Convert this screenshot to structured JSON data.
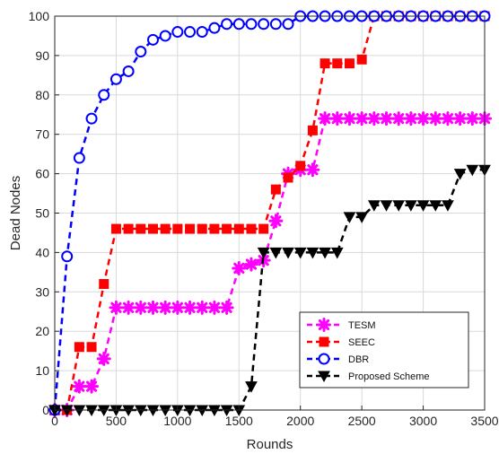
{
  "chart_data": {
    "type": "line",
    "title": "",
    "xlabel": "Rounds",
    "ylabel": "Dead Nodes",
    "xlim": [
      0,
      3500
    ],
    "ylim": [
      0,
      100
    ],
    "x_ticks": [
      0,
      500,
      1000,
      1500,
      2000,
      2500,
      3000,
      3500
    ],
    "y_ticks": [
      0,
      10,
      20,
      30,
      40,
      50,
      60,
      70,
      80,
      90,
      100
    ],
    "grid": true,
    "legend_position": "bottom-right",
    "series": [
      {
        "name": "TESM",
        "color": "#ff00ff",
        "marker": "asterisk",
        "x": [
          0,
          100,
          200,
          300,
          400,
          500,
          600,
          700,
          800,
          900,
          1000,
          1100,
          1200,
          1300,
          1400,
          1500,
          1600,
          1700,
          1800,
          1900,
          2000,
          2100,
          2200,
          2300,
          2400,
          2500,
          2600,
          2700,
          2800,
          2900,
          3000,
          3100,
          3200,
          3300,
          3400,
          3500
        ],
        "y": [
          0,
          0,
          6,
          6,
          13,
          26,
          26,
          26,
          26,
          26,
          26,
          26,
          26,
          26,
          26,
          36,
          37,
          38,
          48,
          60,
          61,
          61,
          74,
          74,
          74,
          74,
          74,
          74,
          74,
          74,
          74,
          74,
          74,
          74,
          74,
          74
        ]
      },
      {
        "name": "SEEC",
        "color": "#ff0000",
        "marker": "square",
        "x": [
          0,
          100,
          200,
          300,
          400,
          500,
          600,
          700,
          800,
          900,
          1000,
          1100,
          1200,
          1300,
          1400,
          1500,
          1600,
          1700,
          1800,
          1900,
          2000,
          2100,
          2200,
          2300,
          2400,
          2500,
          2600,
          2700,
          2800,
          2900,
          3000,
          3100,
          3200,
          3300,
          3400,
          3500
        ],
        "y": [
          0,
          0,
          16,
          16,
          32,
          46,
          46,
          46,
          46,
          46,
          46,
          46,
          46,
          46,
          46,
          46,
          46,
          46,
          56,
          59,
          62,
          71,
          88,
          88,
          88,
          89,
          100,
          100,
          100,
          100,
          100,
          100,
          100,
          100,
          100,
          100
        ]
      },
      {
        "name": "DBR",
        "color": "#0000ff",
        "marker": "circle",
        "x": [
          0,
          100,
          200,
          300,
          400,
          500,
          600,
          700,
          800,
          900,
          1000,
          1100,
          1200,
          1300,
          1400,
          1500,
          1600,
          1700,
          1800,
          1900,
          2000,
          2100,
          2200,
          2300,
          2400,
          2500,
          2600,
          2700,
          2800,
          2900,
          3000,
          3100,
          3200,
          3300,
          3400,
          3500
        ],
        "y": [
          0,
          39,
          64,
          74,
          80,
          84,
          86,
          91,
          94,
          95,
          96,
          96,
          96,
          97,
          98,
          98,
          98,
          98,
          98,
          98,
          100,
          100,
          100,
          100,
          100,
          100,
          100,
          100,
          100,
          100,
          100,
          100,
          100,
          100,
          100,
          100
        ]
      },
      {
        "name": "Proposed Scheme",
        "color": "#000000",
        "marker": "triangle-down",
        "x": [
          0,
          100,
          200,
          300,
          400,
          500,
          600,
          700,
          800,
          900,
          1000,
          1100,
          1200,
          1300,
          1400,
          1500,
          1600,
          1700,
          1800,
          1900,
          2000,
          2100,
          2200,
          2300,
          2400,
          2500,
          2600,
          2700,
          2800,
          2900,
          3000,
          3100,
          3200,
          3300,
          3400,
          3500
        ],
        "y": [
          0,
          0,
          0,
          0,
          0,
          0,
          0,
          0,
          0,
          0,
          0,
          0,
          0,
          0,
          0,
          0,
          6,
          40,
          40,
          40,
          40,
          40,
          40,
          40,
          49,
          49,
          52,
          52,
          52,
          52,
          52,
          52,
          52,
          60,
          61,
          61
        ]
      }
    ]
  }
}
